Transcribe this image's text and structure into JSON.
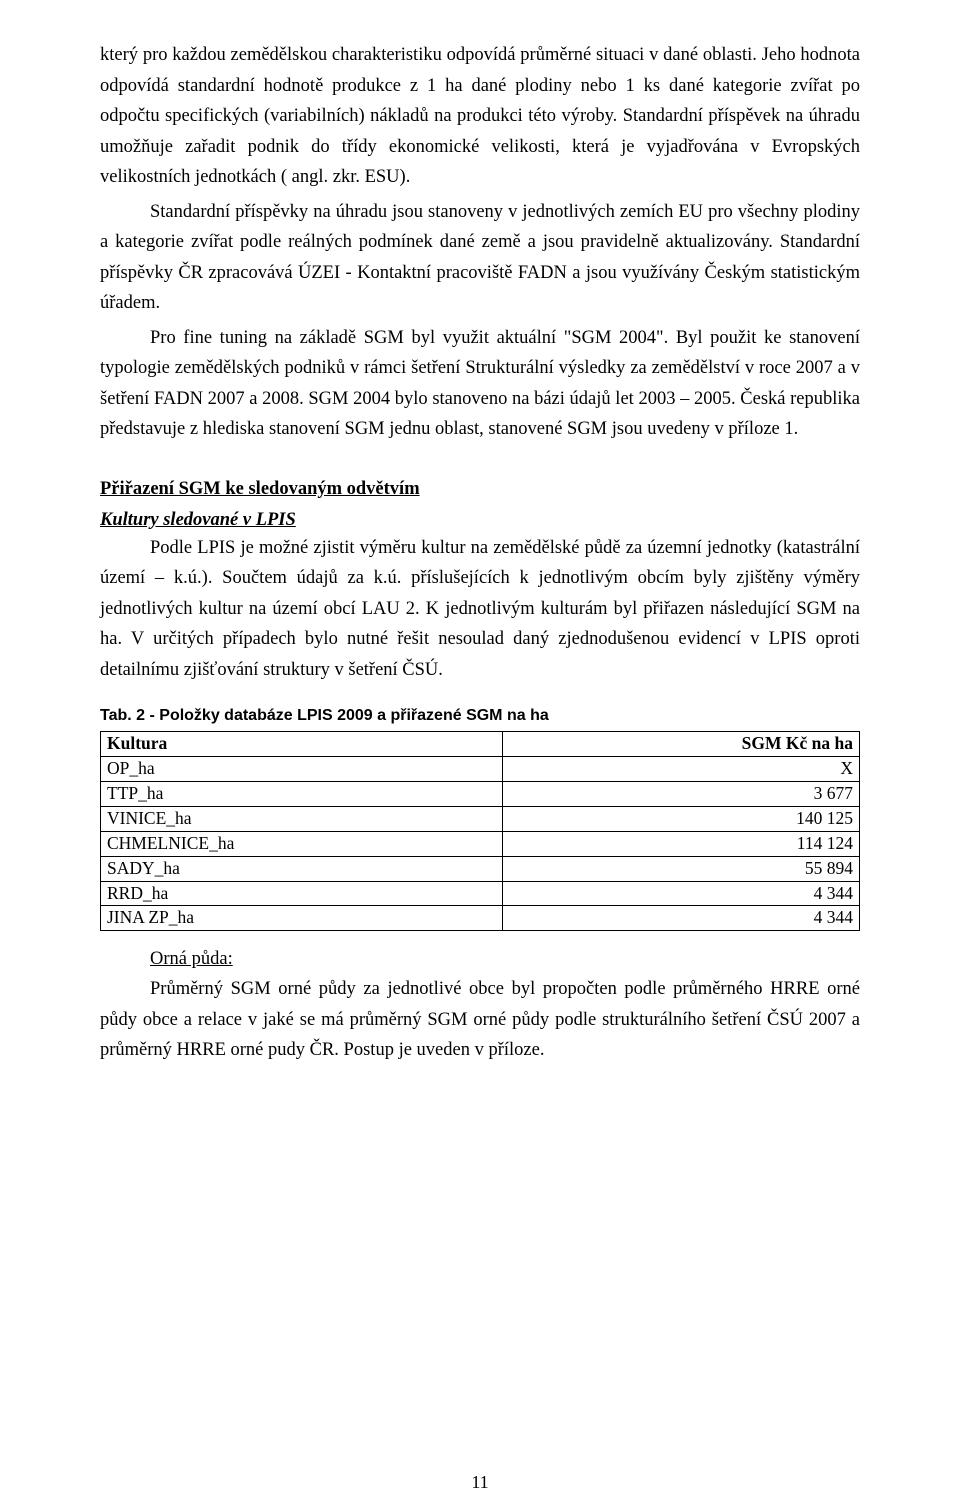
{
  "paragraphs": {
    "p1": "který pro každou zemědělskou charakteristiku odpovídá průměrné situaci v dané oblasti. Jeho hodnota odpovídá standardní hodnotě produkce z 1 ha dané plodiny nebo 1 ks dané kategorie zvířat po odpočtu specifických (variabilních) nákladů na produkci této výroby. Standardní příspěvek na úhradu umožňuje zařadit podnik do třídy ekonomické velikosti, která je vyjadřována v Evropských velikostních jednotkách ( angl. zkr. ESU).",
    "p2": "Standardní příspěvky na úhradu jsou stanoveny v jednotlivých zemích EU pro všechny plodiny a kategorie zvířat podle reálných podmínek dané země a jsou pravidelně aktualizovány. Standardní příspěvky ČR zpracovává ÚZEI - Kontaktní pracoviště FADN a jsou využívány Českým statistickým úřadem.",
    "p3": "Pro fine tuning na základě SGM byl využit aktuální \"SGM 2004\". Byl použit ke stanovení typologie zemědělských podniků v rámci šetření Strukturální výsledky za zemědělství v roce 2007 a v šetření FADN 2007 a 2008. SGM 2004 bylo stanoveno na bázi údajů let 2003 – 2005. Česká republika představuje z hlediska stanovení SGM jednu oblast, stanovené SGM jsou uvedeny v příloze 1.",
    "p4": "Podle LPIS je možné zjistit výměru kultur na zemědělské půdě za územní jednotky (katastrální území – k.ú.). Součtem údajů za k.ú. příslušejících k jednotlivým obcím byly zjištěny výměry jednotlivých kultur na území obcí LAU 2. K jednotlivým kulturám byl přiřazen následující SGM na ha. V určitých případech bylo nutné řešit nesoulad daný zjednodušenou evidencí v LPIS oproti detailnímu zjišťování struktury v šetření ČSÚ.",
    "p5": "Průměrný SGM orné půdy za jednotlivé obce byl propočten podle průměrného HRRE orné půdy obce a relace v jaké se má průměrný SGM orné půdy podle strukturálního šetření ČSÚ 2007 a průměrný HRRE orné pudy ČR. Postup je uveden v příloze."
  },
  "headings": {
    "section": "Přiřazení SGM ke sledovaným odvětvím",
    "sub": "Kultury sledované v LPIS",
    "orna": "Orná půda:"
  },
  "table": {
    "caption": "Tab. 2 - Položky databáze LPIS 2009 a přiřazené SGM na ha",
    "col1": "Kultura",
    "col2": "SGM Kč na ha",
    "rows": [
      {
        "name": "OP_ha",
        "value": "X"
      },
      {
        "name": "TTP_ha",
        "value": "3 677"
      },
      {
        "name": "VINICE_ha",
        "value": "140 125"
      },
      {
        "name": "CHMELNICE_ha",
        "value": "114 124"
      },
      {
        "name": "SADY_ha",
        "value": "55 894"
      },
      {
        "name": "RRD_ha",
        "value": "4 344"
      },
      {
        "name": "JINA ZP_ha",
        "value": "4 344"
      }
    ]
  },
  "pageNumber": "11",
  "style": {
    "background": "#ffffff",
    "textColor": "#000000",
    "bodyFont": "Times New Roman",
    "bodyFontSizePt": 14,
    "captionFont": "Arial",
    "captionFontSizePt": 12,
    "tableBorderColor": "#000000",
    "pageWidth": 960,
    "pageHeight": 1511
  }
}
